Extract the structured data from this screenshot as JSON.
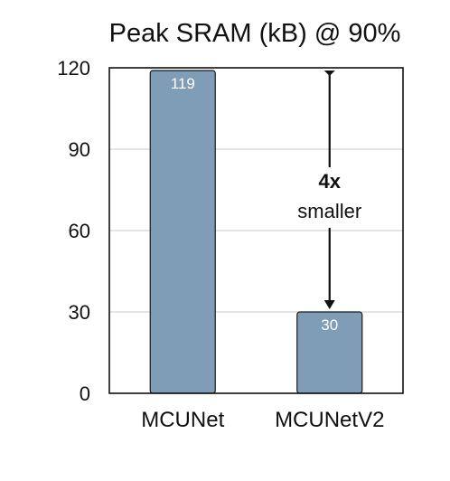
{
  "chart_data": {
    "type": "bar",
    "title": "Peak SRAM (kB) @ 90%",
    "categories": [
      "MCUNet",
      "MCUNetV2"
    ],
    "values": [
      119,
      30
    ],
    "value_labels": [
      "119",
      "30"
    ],
    "ylim": [
      0,
      120
    ],
    "yticks": [
      0,
      30,
      60,
      90,
      120
    ],
    "ytick_labels": [
      "0",
      "30",
      "60",
      "90",
      "120"
    ],
    "xlabel": "",
    "ylabel": "",
    "grid": "horizontal",
    "bar_color": "#7f9db7",
    "annotation": {
      "bold_text": "4x",
      "text": "smaller",
      "arrow_from": 118,
      "arrow_to": 31
    }
  }
}
